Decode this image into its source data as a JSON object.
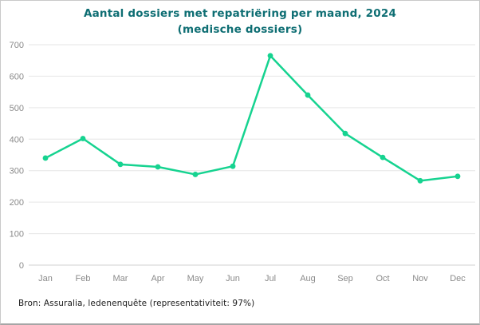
{
  "title": {
    "line1": "Aantal dossiers met repatriëring per maand, 2024",
    "line2": "(medische dossiers)"
  },
  "footer": {
    "source": "Bron: Assuralia, ledenenquête (representativiteit: 97%)"
  },
  "colors": {
    "line": "#16d390",
    "marker": "#16d390",
    "title": "#0e6e73",
    "grid": "#e6e6e6",
    "axis_line": "#d2d2d2",
    "tick_text": "#8a8a8a",
    "footer_text": "#1c1c1c",
    "background": "#ffffff",
    "border": "#c9c9c9"
  },
  "chart_data": {
    "type": "line",
    "title": "Aantal dossiers met repatriëring per maand, 2024 (medische dossiers)",
    "categories": [
      "Jan",
      "Feb",
      "Mar",
      "Apr",
      "May",
      "Jun",
      "Jul",
      "Aug",
      "Sep",
      "Oct",
      "Nov",
      "Dec"
    ],
    "series": [
      {
        "name": "Aantal dossiers met repatriëring",
        "values": [
          340,
          402,
          320,
          312,
          288,
          314,
          665,
          540,
          418,
          342,
          268,
          282
        ]
      }
    ],
    "xlabel": "",
    "ylabel": "",
    "ylim": [
      0,
      700
    ],
    "ytick_interval": 100,
    "yticks": [
      0,
      100,
      200,
      300,
      400,
      500,
      600,
      700
    ],
    "grid": true,
    "legend": false,
    "marker": "circle"
  }
}
